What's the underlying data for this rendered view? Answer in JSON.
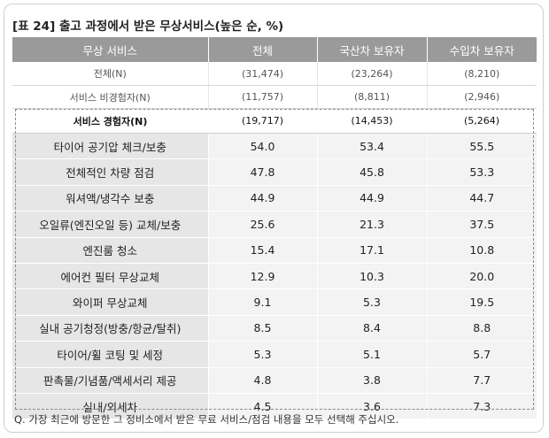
{
  "title": "[표 24] 출고 과정에서 받은 무상서비스(높은 순, %)",
  "columns": [
    "무상 서비스",
    "전체",
    "국산차 보유자",
    "수입차 보유자"
  ],
  "summary_rows": [
    {
      "label": "전체(N)",
      "values": [
        "(31,474)",
        "(23,264)",
        "(8,210)"
      ]
    },
    {
      "label": "서비스 비경험자(N)",
      "values": [
        "(11,757)",
        "(8,811)",
        "(2,946)"
      ]
    }
  ],
  "experienced_row": {
    "label": "서비스 경험자(N)",
    "values": [
      "(19,717)",
      "(14,453)",
      "(5,264)"
    ]
  },
  "items": [
    {
      "label": "타이어 공기압 체크/보충",
      "values": [
        "54.0",
        "53.4",
        "55.5"
      ]
    },
    {
      "label": "전체적인 차량 점검",
      "values": [
        "47.8",
        "45.8",
        "53.3"
      ]
    },
    {
      "label": "워셔액/냉각수 보충",
      "values": [
        "44.9",
        "44.9",
        "44.7"
      ]
    },
    {
      "label": "오일류(엔진오일 등) 교체/보충",
      "values": [
        "25.6",
        "21.3",
        "37.5"
      ]
    },
    {
      "label": "엔진룸 청소",
      "values": [
        "15.4",
        "17.1",
        "10.8"
      ]
    },
    {
      "label": "에어컨 필터 무상교체",
      "values": [
        "12.9",
        "10.3",
        "20.0"
      ]
    },
    {
      "label": "와이퍼 무상교체",
      "values": [
        "9.1",
        "5.3",
        "19.5"
      ]
    },
    {
      "label": "실내 공기청정(방충/항균/탈취)",
      "values": [
        "8.5",
        "8.4",
        "8.8"
      ]
    },
    {
      "label": "타이어/휠 코팅 및 세정",
      "values": [
        "5.3",
        "5.1",
        "5.7"
      ]
    },
    {
      "label": "판촉물/기념품/액세서리 제공",
      "values": [
        "4.8",
        "3.8",
        "7.7"
      ]
    },
    {
      "label": "실내/외세차",
      "values": [
        "4.5",
        "3.6",
        "7.3"
      ]
    }
  ],
  "note": "Q. 가장 최근에 방문한 그 정비소에서 받은 무료 서비스/점검 내용을 모두 선택해 주십시오.",
  "colors": {
    "header_bg": "#9a9a9a",
    "label_bg": "#e6e6e6",
    "value_bg": "#f3f3f3",
    "dash_border": "#8a8a8a"
  }
}
